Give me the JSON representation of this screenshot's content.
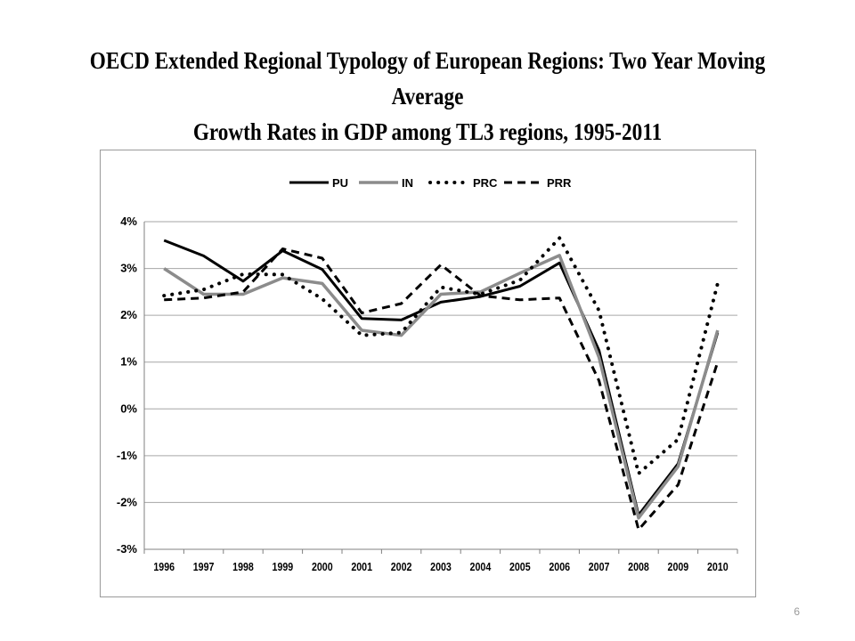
{
  "slide": {
    "title_line1": "OECD Extended Regional Typology of European Regions: Two Year Moving Average",
    "title_line2": "Growth Rates in GDP among TL3 regions, 1995-2011",
    "page_number": "6"
  },
  "chart_data": {
    "type": "line",
    "title": "",
    "xlabel": "",
    "ylabel": "",
    "x": [
      "1996",
      "1997",
      "1998",
      "1999",
      "2000",
      "2001",
      "2002",
      "2003",
      "2004",
      "2005",
      "2006",
      "2007",
      "2008",
      "2009",
      "2010"
    ],
    "ylim": [
      -3,
      4
    ],
    "yticks": [
      -3,
      -2,
      -1,
      0,
      1,
      2,
      3,
      4
    ],
    "ytick_labels": [
      "-3%",
      "-2%",
      "-1%",
      "0%",
      "1%",
      "2%",
      "3%",
      "4%"
    ],
    "grid": "horizontal",
    "legend_position": "top",
    "series": [
      {
        "name": "PU",
        "color": "#000000",
        "style": "solid",
        "values": [
          3.6,
          3.27,
          2.73,
          3.38,
          2.98,
          1.93,
          1.9,
          2.28,
          2.4,
          2.62,
          3.12,
          1.25,
          -2.27,
          -1.17,
          1.63
        ]
      },
      {
        "name": "IN",
        "color": "#8c8c8c",
        "style": "solid",
        "values": [
          3.0,
          2.45,
          2.45,
          2.8,
          2.68,
          1.68,
          1.57,
          2.45,
          2.5,
          2.9,
          3.28,
          1.1,
          -2.33,
          -1.23,
          1.68
        ]
      },
      {
        "name": "PRC",
        "color": "#000000",
        "style": "dotted",
        "values": [
          2.42,
          2.55,
          2.88,
          2.87,
          2.35,
          1.57,
          1.63,
          2.6,
          2.45,
          2.75,
          3.65,
          2.1,
          -1.38,
          -0.65,
          2.68
        ]
      },
      {
        "name": "PRR",
        "color": "#000000",
        "style": "dashed",
        "values": [
          2.33,
          2.37,
          2.5,
          3.42,
          3.22,
          2.05,
          2.25,
          3.08,
          2.42,
          2.33,
          2.37,
          0.6,
          -2.58,
          -1.62,
          1.0
        ]
      }
    ]
  }
}
